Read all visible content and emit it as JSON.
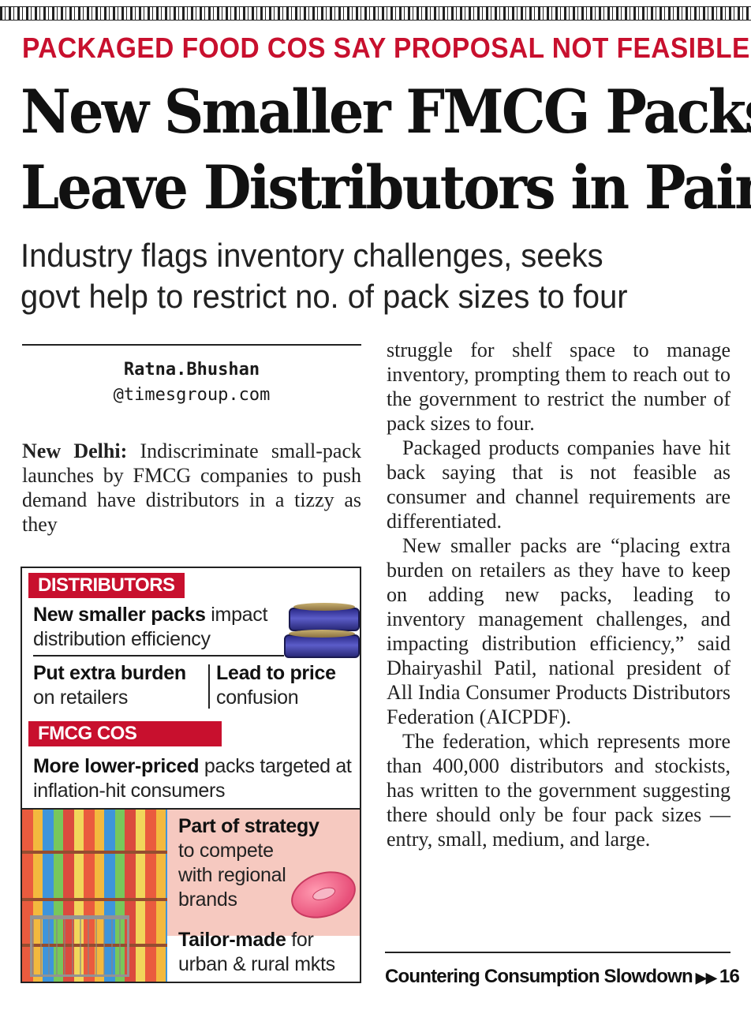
{
  "kicker": "PACKAGED FOOD COS SAY PROPOSAL NOT FEASIBLE",
  "headline": {
    "line1": "New Smaller FMCG Packs",
    "line2": "Leave Distributors in Pain"
  },
  "deck": {
    "line1": "Industry flags inventory challenges, seeks",
    "line2": "govt help to restrict no. of pack sizes to four"
  },
  "byline": {
    "name": "Ratna.Bhushan",
    "email": "@timesgroup.com"
  },
  "story": {
    "dateline": "New Delhi:",
    "lead": "Indiscriminate small-pack launches by FMCG companies to push demand have distributors in a tizzy as they",
    "p1": "struggle for shelf space to manage inventory, prompting them to reach out to the government to restrict the number of pack sizes to four.",
    "p2": "Packaged products companies have hit back saying that is not feasible as consumer and channel requirements are differentiated.",
    "p3": "New smaller packs are “placing extra burden on retailers as they have to keep on adding new packs, leading to inventory management challenges, and impacting distribution efficiency,” said Dhairyashil Patil, national president of All India Consumer Products Distributors Federation (AICPDF).",
    "p4": "The federation, which represents more than 400,000 distributors and stockists, has written to the government suggesting there should only be four pack sizes — entry, small, medium, and large."
  },
  "box": {
    "distributors_label": "DISTRIBUTORS",
    "d1_bold": "New smaller packs",
    "d1_rest": " impact distribution efficiency",
    "d2_bold": "Put extra burden",
    "d2_rest": "on retailers",
    "d3_bold": "Lead to price",
    "d3_rest": "confusion",
    "fmcg_label": "FMCG COS",
    "f1_bold": "More lower-priced",
    "f1_rest": " packs targeted at inflation-hit consumers",
    "f2_bold": "Part of strategy",
    "f2_rest_1": "to compete",
    "f2_rest_2": "with regional",
    "f2_rest_3": "brands",
    "f3_bold": "Tailor-made",
    "f3_rest_1": " for",
    "f3_rest_2": "urban & rural mkts"
  },
  "footer": {
    "text": "Countering Consumption Slowdown",
    "arrows": "▶▶",
    "page": "16"
  }
}
